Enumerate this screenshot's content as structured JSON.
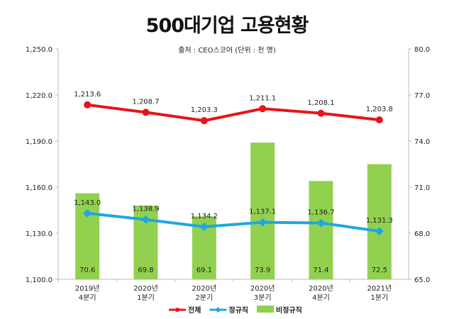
{
  "chart_data": {
    "type": "bar+line",
    "title": "500대기업 고용현황",
    "subtitle": "출처 : CEO스코어 (단위 : 천 명)",
    "categories": [
      [
        "2019년",
        "4분기"
      ],
      [
        "2020년",
        "1분기"
      ],
      [
        "2020년",
        "2분기"
      ],
      [
        "2020년",
        "3분기"
      ],
      [
        "2020년",
        "4분기"
      ],
      [
        "2021년",
        "1분기"
      ]
    ],
    "left_axis": {
      "range": [
        1100,
        1250
      ],
      "ticks": [
        "1,100.0",
        "1,130.0",
        "1,160.0",
        "1,190.0",
        "1,220.0",
        "1,250.0"
      ],
      "tick_values": [
        1100,
        1130,
        1160,
        1190,
        1220,
        1250
      ]
    },
    "right_axis": {
      "range": [
        65,
        80
      ],
      "ticks": [
        "65.0",
        "68.0",
        "71.0",
        "74.0",
        "77.0",
        "80.0"
      ],
      "tick_values": [
        65,
        68,
        71,
        74,
        77,
        80
      ]
    },
    "series": [
      {
        "name": "전체",
        "type": "line",
        "axis": "left",
        "color": "#e8141b",
        "marker": "circle",
        "values": [
          1213.6,
          1208.7,
          1203.3,
          1211.1,
          1208.1,
          1203.8
        ],
        "labels": [
          "1,213.6",
          "1,208.7",
          "1,203.3",
          "1,211.1",
          "1,208.1",
          "1,203.8"
        ]
      },
      {
        "name": "정규직",
        "type": "line",
        "axis": "left",
        "color": "#1ea7e1",
        "marker": "diamond",
        "values": [
          1143.0,
          1138.9,
          1134.2,
          1137.1,
          1136.7,
          1131.3
        ],
        "labels": [
          "1,143.0",
          "1,138.9",
          "1,134.2",
          "1,137.1",
          "1,136.7",
          "1,131.3"
        ]
      },
      {
        "name": "비정규직",
        "type": "bar",
        "axis": "right",
        "color": "#92d050",
        "values": [
          70.6,
          69.8,
          69.1,
          73.9,
          71.4,
          72.5
        ],
        "labels": [
          "70.6",
          "69.8",
          "69.1",
          "73.9",
          "71.4",
          "72.5"
        ]
      }
    ],
    "grid": false,
    "legend": "bottom"
  }
}
